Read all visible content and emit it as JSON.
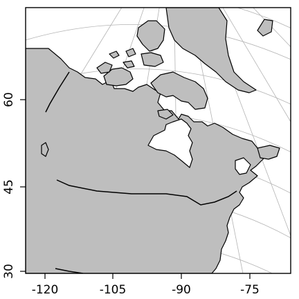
{
  "map": {
    "x_ticks": [
      "-120",
      "-105",
      "-90",
      "-75"
    ],
    "y_ticks": [
      "60",
      "45",
      "30"
    ],
    "colors": {
      "land": "#bebebe",
      "water": "#ffffff",
      "graticule": "#b3b3b3",
      "outline": "#000000"
    }
  }
}
